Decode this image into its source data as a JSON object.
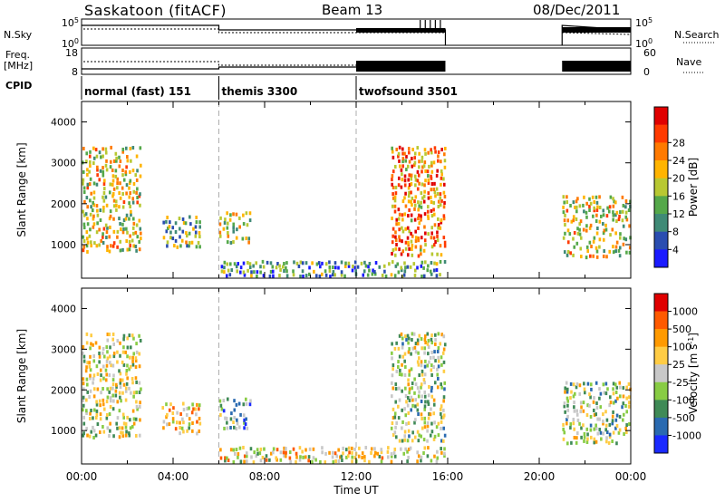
{
  "header": {
    "title": "Saskatoon (fitACF)",
    "beam": "Beam 13",
    "date": "08/Dec/2011"
  },
  "status_panels": {
    "nsky_label": "N.Sky",
    "nsky_ticks": [
      "10^5",
      "10^0"
    ],
    "nsearch_label": "N.Search",
    "nsearch_ticks": [
      "10^5",
      "10^0"
    ],
    "freq_label_line1": "Freq.",
    "freq_label_line2": "[MHz]",
    "freq_ticks": [
      "18",
      "8"
    ],
    "nave_label": "Nave",
    "nave_ticks": [
      "60",
      "0"
    ],
    "cpid_label": "CPID",
    "cpid_modes": [
      {
        "name": "normal (fast) 151",
        "start": 0.0,
        "end": 6.0
      },
      {
        "name": "themis 3300",
        "start": 6.0,
        "end": 12.0
      },
      {
        "name": "twofsound 3501",
        "start": 12.0,
        "end": 24.0
      }
    ],
    "data_gaps": [
      [
        16.0,
        21.0
      ]
    ]
  },
  "chart_data": [
    {
      "type": "heatmap",
      "name": "power-panel",
      "ylabel": "Slant Range [km]",
      "ylim": [
        180,
        4500
      ],
      "yticks": [
        "1000",
        "2000",
        "3000",
        "4000"
      ],
      "colorbar": {
        "label": "Power [dB]",
        "ticks": [
          "4",
          "8",
          "12",
          "16",
          "20",
          "24",
          "28"
        ],
        "colors": [
          "#1a1aff",
          "#2a4db0",
          "#3f8a76",
          "#55a84a",
          "#b8c832",
          "#ffb400",
          "#ff7a00",
          "#ff3a00",
          "#e00000"
        ]
      },
      "echo_regions": [
        {
          "t0": 0.0,
          "t1": 2.6,
          "r0": 800,
          "r1": 3400,
          "level": 0.55
        },
        {
          "t0": 3.5,
          "t1": 5.2,
          "r0": 900,
          "r1": 1700,
          "level": 0.4
        },
        {
          "t0": 6.0,
          "t1": 7.4,
          "r0": 1000,
          "r1": 1800,
          "level": 0.5
        },
        {
          "t0": 6.0,
          "t1": 15.9,
          "r0": 200,
          "r1": 600,
          "level": 0.3
        },
        {
          "t0": 13.5,
          "t1": 15.9,
          "r0": 700,
          "r1": 3400,
          "level": 0.7
        },
        {
          "t0": 21.0,
          "t1": 24.0,
          "r0": 650,
          "r1": 2200,
          "level": 0.55
        }
      ]
    },
    {
      "type": "heatmap",
      "name": "velocity-panel",
      "ylabel": "Slant Range [km]",
      "xlabel": "Time UT",
      "ylim": [
        180,
        4500
      ],
      "yticks": [
        "1000",
        "2000",
        "3000",
        "4000"
      ],
      "xlim": [
        0,
        24
      ],
      "xticks": [
        "00:00",
        "04:00",
        "08:00",
        "12:00",
        "16:00",
        "20:00",
        "00:00"
      ],
      "colorbar": {
        "label": "Velocity [m s^-1]",
        "ticks": [
          "1000",
          "500",
          "100",
          "25",
          "-25",
          "-100",
          "-500",
          "-1000"
        ],
        "colors": [
          "#1a2aff",
          "#2a6ab0",
          "#3f8a56",
          "#88cc44",
          "#c8c8c8",
          "#ffcc44",
          "#ff9a00",
          "#ff5a00",
          "#e00000"
        ]
      },
      "echo_regions": [
        {
          "t0": 0.0,
          "t1": 2.6,
          "r0": 800,
          "r1": 3400,
          "level": 0.5
        },
        {
          "t0": 3.5,
          "t1": 5.2,
          "r0": 900,
          "r1": 1700,
          "level": 0.6
        },
        {
          "t0": 6.0,
          "t1": 7.4,
          "r0": 1000,
          "r1": 1800,
          "level": 0.3
        },
        {
          "t0": 6.0,
          "t1": 15.9,
          "r0": 200,
          "r1": 600,
          "level": 0.55
        },
        {
          "t0": 13.5,
          "t1": 15.9,
          "r0": 700,
          "r1": 3400,
          "level": 0.45
        },
        {
          "t0": 21.0,
          "t1": 24.0,
          "r0": 650,
          "r1": 2200,
          "level": 0.45
        }
      ]
    }
  ]
}
